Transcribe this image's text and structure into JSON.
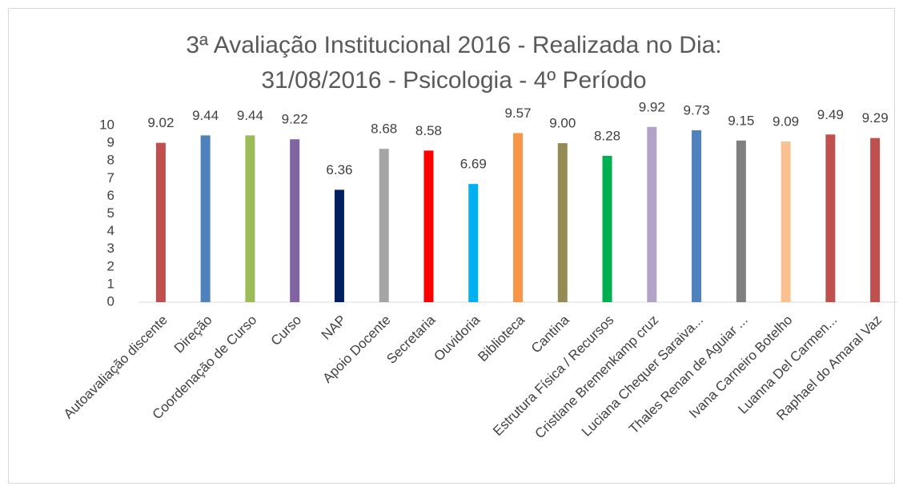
{
  "chart_data": {
    "type": "bar",
    "title": [
      "3ª Avaliação Institucional 2016 - Realizada no Dia:",
      "31/08/2016 - Psicologia - 4º Período"
    ],
    "categories": [
      "Autoavaliação discente",
      "Direção",
      "Coordenação de Curso",
      "Curso",
      "NAP",
      "Apoio Docente",
      "Secretaria",
      "Ouvidoria",
      "Biblioteca",
      "Cantina",
      "Estrutura Física / Recursos",
      "Cristiane Bremenkamp cruz",
      "Luciana Chequer Saraiva...",
      "Thales Renan de Aguiar ...",
      "Ivana Carneiro Botelho",
      "Luanna Del Carmen...",
      "Raphael do Amaral Vaz"
    ],
    "values": [
      9.02,
      9.44,
      9.44,
      9.22,
      6.36,
      8.68,
      8.58,
      6.69,
      9.57,
      9.0,
      8.28,
      9.92,
      9.73,
      9.15,
      9.09,
      9.49,
      9.29
    ],
    "value_labels": [
      "9.02",
      "9.44",
      "9.44",
      "9.22",
      "6.36",
      "8.68",
      "8.58",
      "6.69",
      "9.57",
      "9.00",
      "8.28",
      "9.92",
      "9.73",
      "9.15",
      "9.09",
      "9.49",
      "9.29"
    ],
    "colors": [
      "#c0504d",
      "#4f81bd",
      "#9bbb59",
      "#8064a2",
      "#002060",
      "#a5a5a5",
      "#ff0000",
      "#00b0f0",
      "#f79646",
      "#948a54",
      "#00b050",
      "#b3a2c7",
      "#4f81bd",
      "#7f7f7f",
      "#fac090",
      "#c0504d",
      "#c0504d"
    ],
    "ylim": [
      0,
      10
    ],
    "yticks": [
      0,
      1,
      2,
      3,
      4,
      5,
      6,
      7,
      8,
      9,
      10
    ],
    "grid": false
  }
}
